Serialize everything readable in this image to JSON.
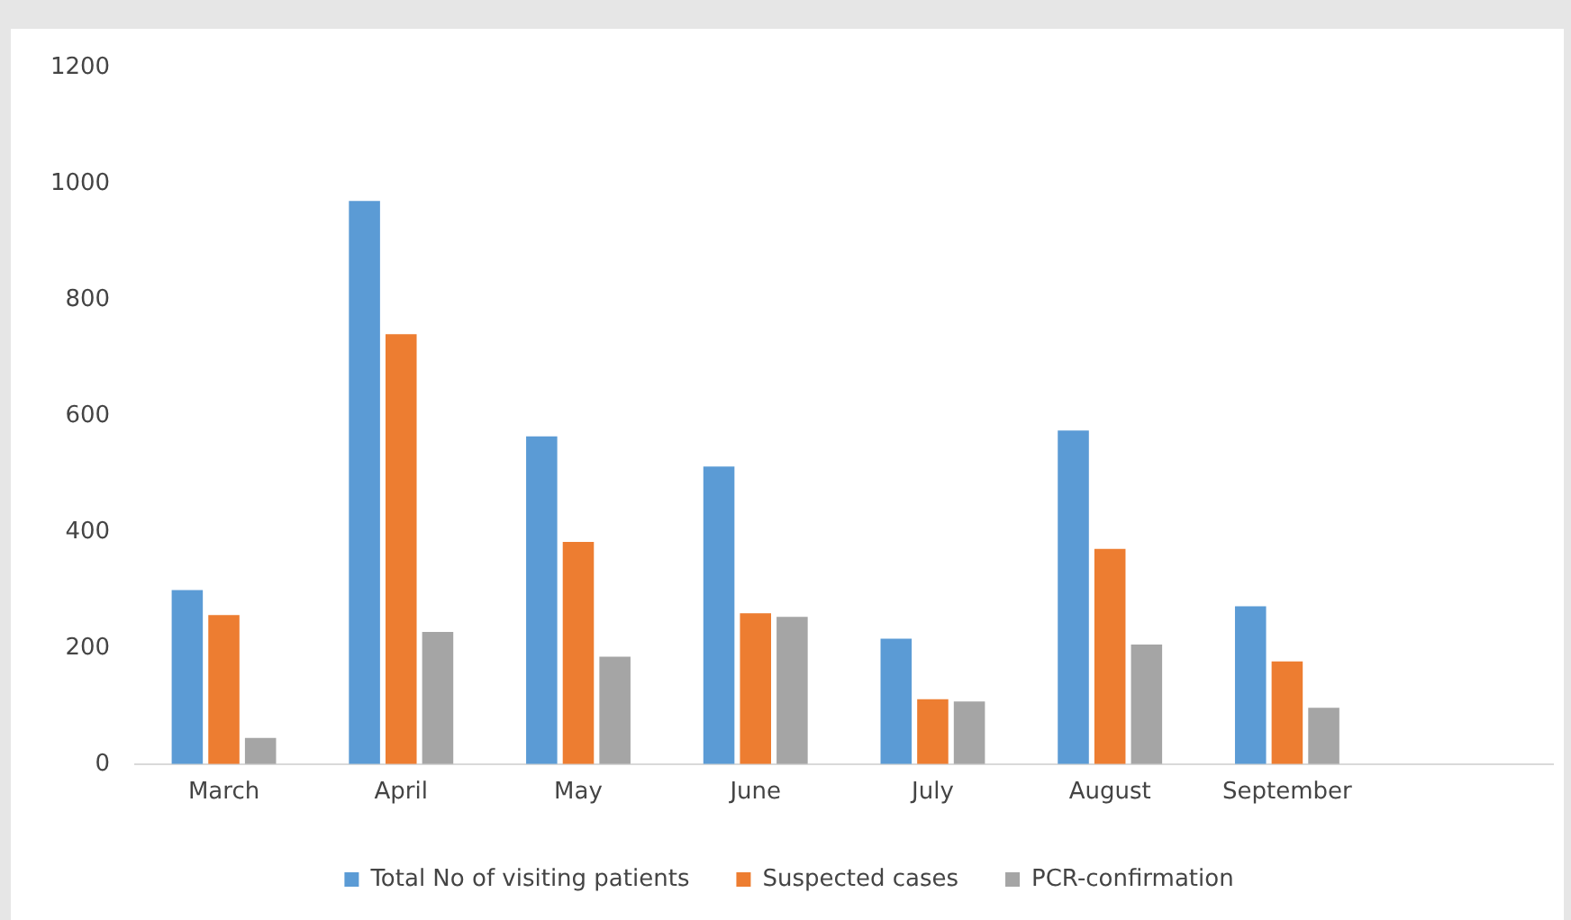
{
  "chart_data": {
    "type": "bar",
    "categories": [
      "March",
      "April",
      "May",
      "June",
      "July",
      "August",
      "September",
      null
    ],
    "series": [
      {
        "name": "Total No of visiting patients",
        "color": "#5b9bd5",
        "values": [
          300,
          971,
          565,
          513,
          216,
          575,
          272,
          null
        ]
      },
      {
        "name": "Suspected cases",
        "color": "#ed7d31",
        "values": [
          257,
          741,
          383,
          260,
          112,
          371,
          177,
          null
        ]
      },
      {
        "name": "PCR-confirmation",
        "color": "#a5a5a5",
        "values": [
          45,
          228,
          185,
          254,
          108,
          206,
          97,
          null
        ]
      }
    ],
    "ylim": [
      0,
      1200
    ],
    "yticks": [
      0,
      200,
      400,
      600,
      800,
      1000,
      1200
    ],
    "grid": false,
    "legend": "bottom"
  }
}
